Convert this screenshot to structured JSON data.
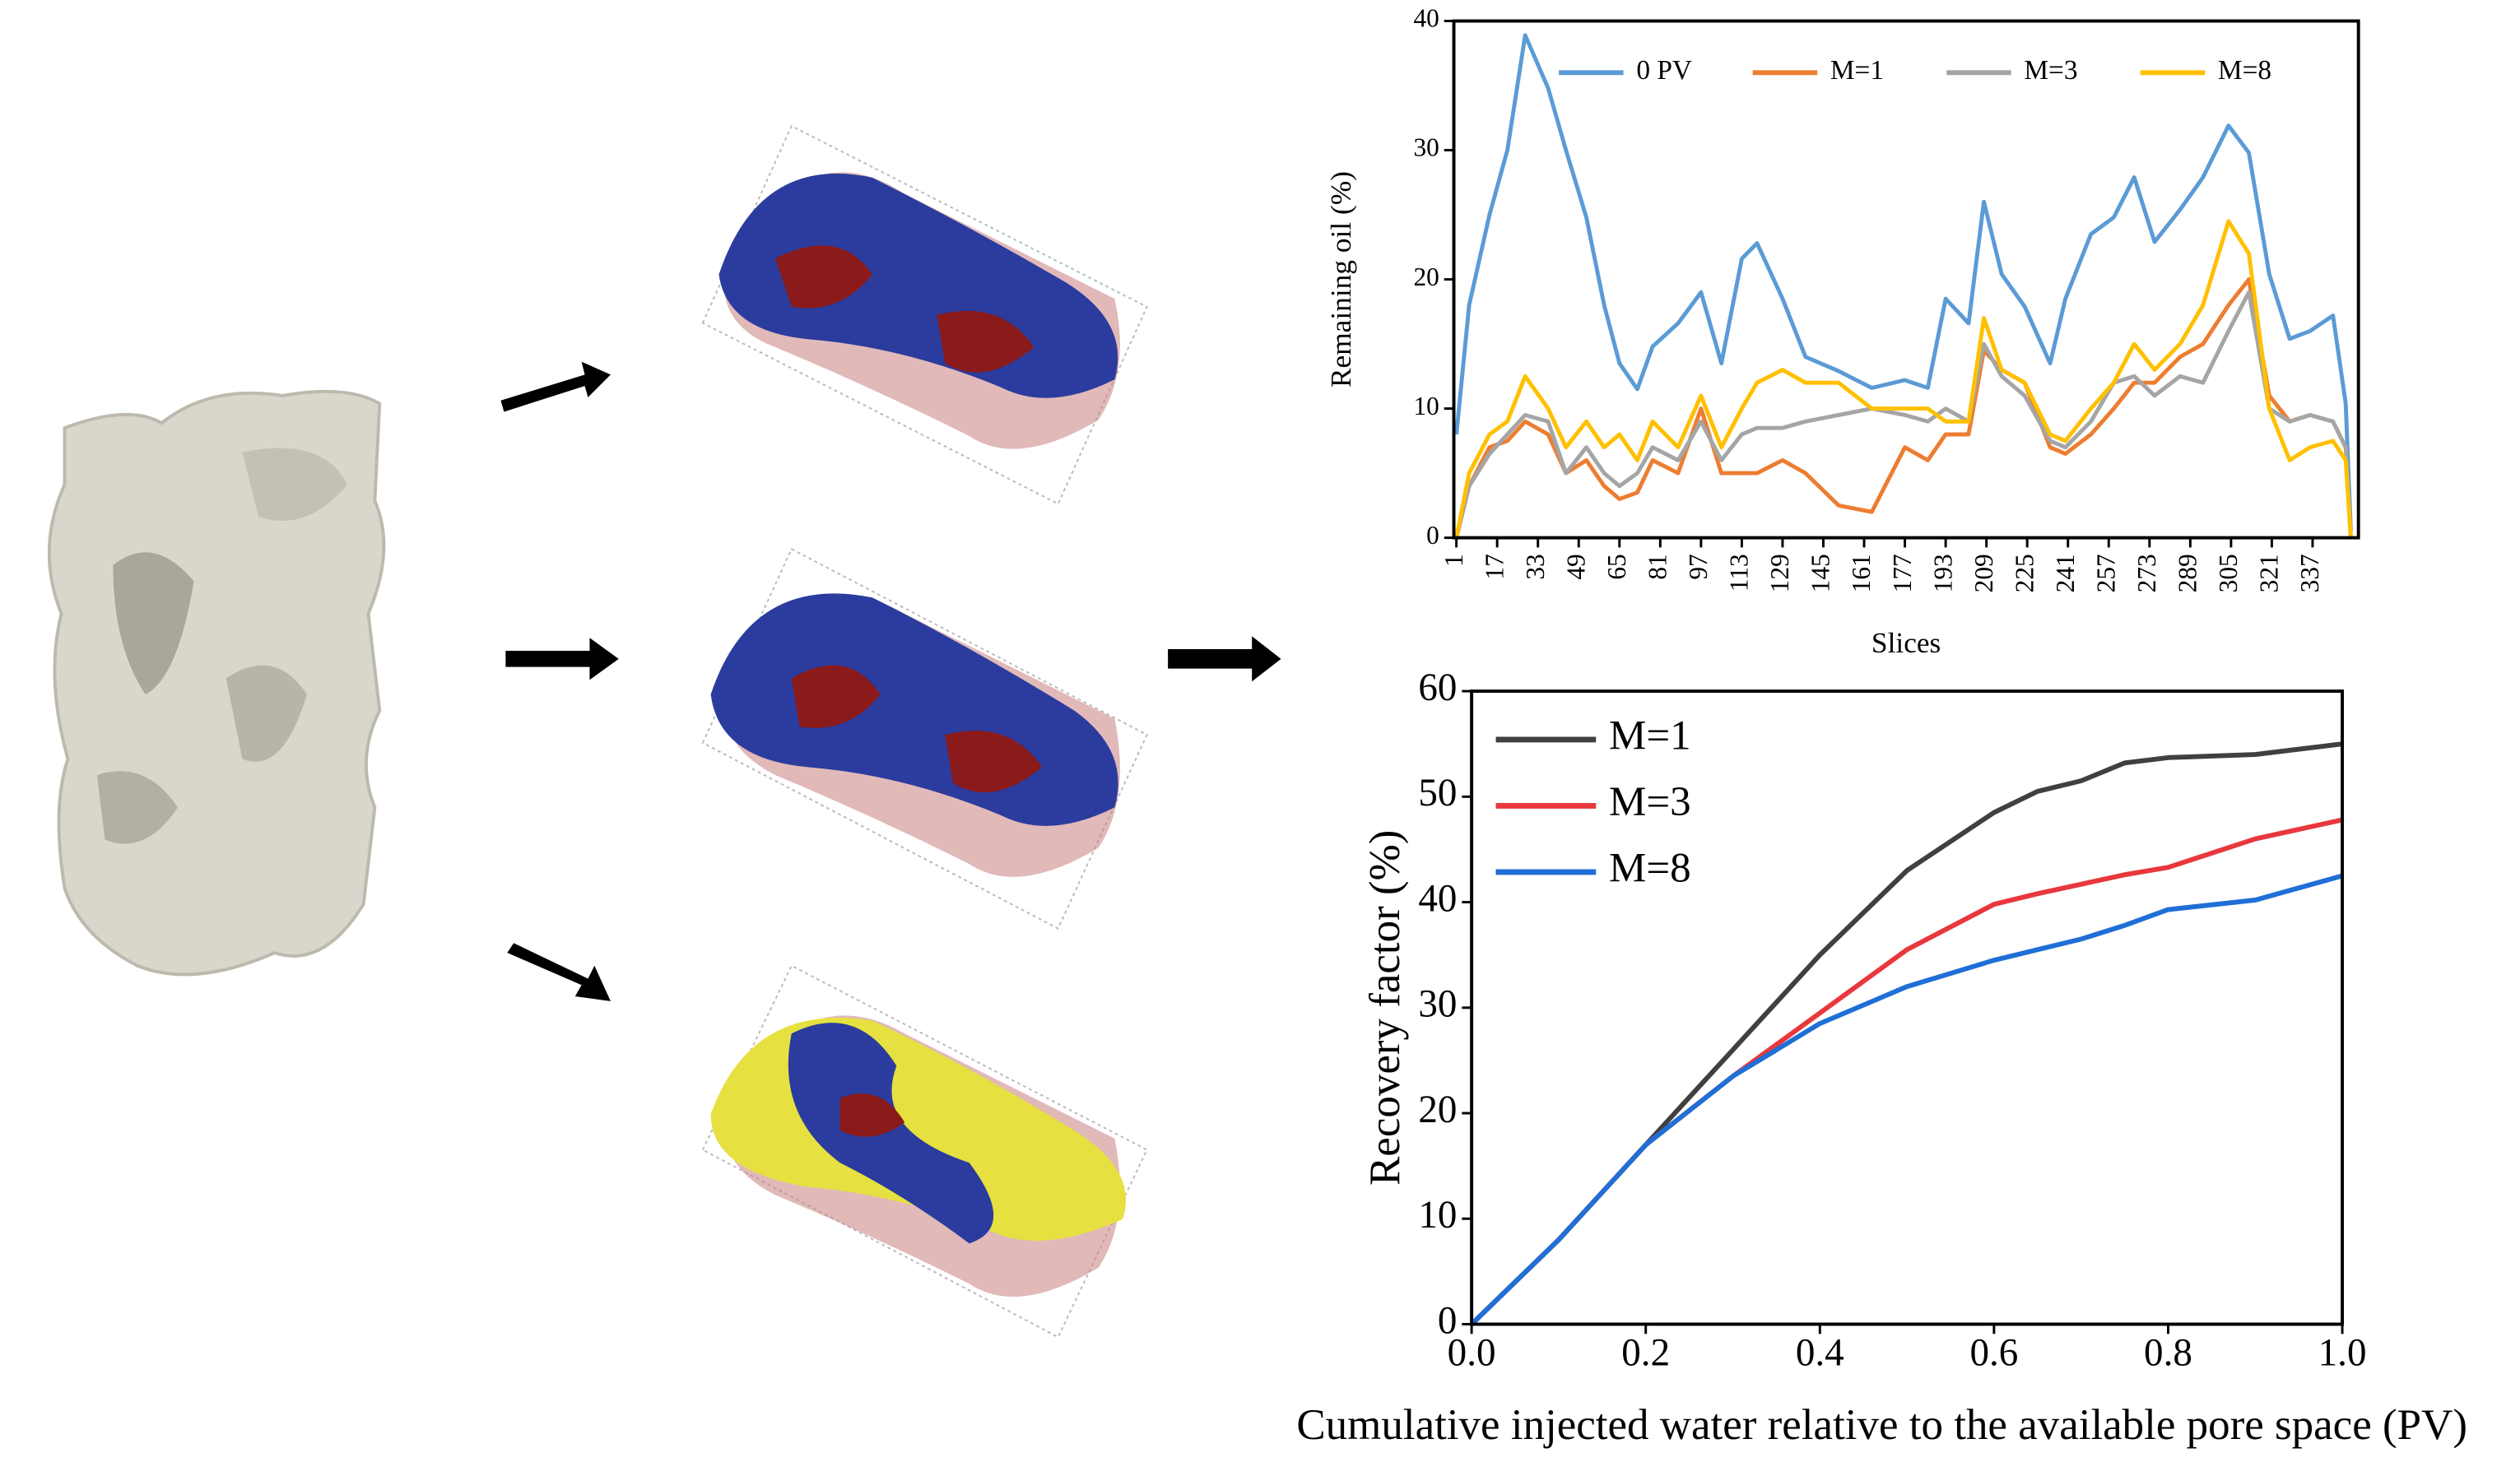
{
  "chart_data": [
    {
      "type": "line",
      "xlabel": "Slices",
      "ylabel": "Remaining oil (%)",
      "x": [
        1,
        6,
        14,
        21,
        28,
        37,
        44,
        52,
        59,
        65,
        72,
        78,
        88,
        97,
        105,
        113,
        119,
        129,
        138,
        151,
        164,
        177,
        186,
        193,
        202,
        208,
        215,
        224,
        234,
        240,
        250,
        259,
        267,
        275,
        285,
        294,
        304,
        312,
        320,
        328,
        336,
        345,
        350,
        352
      ],
      "xlim": [
        0,
        355
      ],
      "xticks": [
        1,
        17,
        33,
        49,
        65,
        81,
        97,
        113,
        129,
        145,
        161,
        177,
        193,
        209,
        225,
        241,
        257,
        273,
        289,
        305,
        321,
        337
      ],
      "ylim": [
        0,
        40
      ],
      "yticks": [
        0,
        10,
        20,
        30,
        40
      ],
      "legend": "top",
      "series": [
        {
          "name": "0 PV",
          "color": "#5b9bd5",
          "values": [
            8,
            18,
            25,
            30,
            38.9,
            34.8,
            30,
            24.8,
            18,
            13.5,
            11.5,
            14.8,
            16.6,
            19,
            13.5,
            21.6,
            22.8,
            18.5,
            14,
            12.9,
            11.6,
            12.2,
            11.6,
            18.5,
            16.6,
            26,
            20.4,
            17.9,
            13.5,
            18.5,
            23.5,
            24.8,
            27.9,
            22.9,
            25.4,
            27.9,
            31.9,
            29.8,
            20.4,
            15.4,
            16,
            17.2,
            10.4,
            0.5
          ]
        },
        {
          "name": "M=1",
          "color": "#ed7d31",
          "values": [
            0,
            4,
            7,
            7.5,
            9,
            8,
            5,
            6,
            4,
            3,
            3.5,
            6,
            5,
            10,
            5,
            5,
            5,
            6,
            5,
            2.5,
            2,
            7,
            6,
            8,
            8,
            14.5,
            13,
            12,
            7,
            6.5,
            8,
            10,
            12,
            12,
            14,
            15,
            18,
            20,
            11,
            9,
            9.5,
            9,
            7,
            0
          ]
        },
        {
          "name": "M=3",
          "color": "#a5a5a5",
          "values": [
            0,
            4,
            6.5,
            8,
            9.5,
            9,
            5,
            7,
            5,
            4,
            5,
            7,
            6,
            9,
            6,
            8,
            8.5,
            8.5,
            9,
            9.5,
            10,
            9.5,
            9,
            10,
            9,
            15,
            12.5,
            11,
            7.5,
            7,
            9,
            12,
            12.5,
            11,
            12.5,
            12,
            16,
            19,
            10,
            9,
            9.5,
            9,
            7,
            0
          ]
        },
        {
          "name": "M=8",
          "color": "#ffc000",
          "values": [
            0,
            5,
            8,
            9,
            12.5,
            10,
            7,
            9,
            7,
            8,
            6,
            9,
            7,
            11,
            7,
            10,
            12,
            13,
            12,
            12,
            10,
            10,
            10,
            9,
            9,
            17,
            13,
            12,
            8,
            7.5,
            10,
            12,
            15,
            13,
            15,
            18,
            24.5,
            22,
            10,
            6,
            7,
            7.5,
            6,
            0
          ]
        }
      ]
    },
    {
      "type": "line",
      "xlabel": "Cumulative injected water relative to the available pore space (PV)",
      "ylabel": "Recovery factor (%)",
      "x": [
        0,
        0.1,
        0.2,
        0.3,
        0.4,
        0.5,
        0.6,
        0.65,
        0.7,
        0.75,
        0.8,
        0.9,
        1.0
      ],
      "xlim": [
        0,
        1
      ],
      "xticks": [
        {
          "value": 0,
          "label": "0.0"
        },
        {
          "value": 0.2,
          "label": "0.2"
        },
        {
          "value": 0.4,
          "label": "0.4"
        },
        {
          "value": 0.6,
          "label": "0.6"
        },
        {
          "value": 0.8,
          "label": "0.8"
        },
        {
          "value": 1,
          "label": "1.0"
        }
      ],
      "ylim": [
        0,
        60
      ],
      "yticks": [
        0,
        10,
        20,
        30,
        40,
        50,
        60
      ],
      "legend": "upper left",
      "series": [
        {
          "name": "M=1",
          "color": "#404040",
          "values": [
            0,
            8,
            17,
            26,
            35,
            43,
            48.5,
            50.5,
            51.5,
            53.2,
            53.7,
            54,
            55
          ]
        },
        {
          "name": "M=3",
          "color": "#e8383d",
          "values": [
            0,
            8,
            17,
            23.5,
            29.5,
            35.5,
            39.8,
            40.8,
            41.7,
            42.6,
            43.3,
            46,
            47.8
          ]
        },
        {
          "name": "M=8",
          "color": "#1f6fd6",
          "values": [
            0,
            8,
            17,
            23.5,
            28.5,
            32,
            34.5,
            35.5,
            36.5,
            37.8,
            39.3,
            40.2,
            42.5
          ]
        }
      ]
    }
  ]
}
